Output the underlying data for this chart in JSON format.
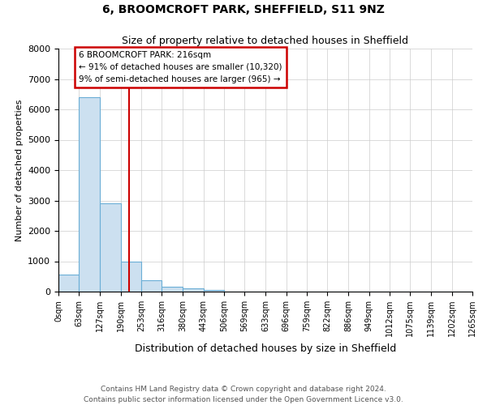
{
  "title_line1": "6, BROOMCROFT PARK, SHEFFIELD, S11 9NZ",
  "title_line2": "Size of property relative to detached houses in Sheffield",
  "xlabel": "Distribution of detached houses by size in Sheffield",
  "ylabel": "Number of detached properties",
  "bar_values": [
    560,
    6400,
    2900,
    1000,
    380,
    160,
    100,
    50,
    0,
    0,
    0,
    0,
    0,
    0,
    0,
    0,
    0,
    0,
    0,
    0
  ],
  "bin_edges": [
    0,
    63,
    127,
    190,
    253,
    316,
    380,
    443,
    506,
    569,
    633,
    696,
    759,
    822,
    886,
    949,
    1012,
    1075,
    1139,
    1202,
    1265
  ],
  "x_labels": [
    "0sqm",
    "63sqm",
    "127sqm",
    "190sqm",
    "253sqm",
    "316sqm",
    "380sqm",
    "443sqm",
    "506sqm",
    "569sqm",
    "633sqm",
    "696sqm",
    "759sqm",
    "822sqm",
    "886sqm",
    "949sqm",
    "1012sqm",
    "1075sqm",
    "1139sqm",
    "1202sqm",
    "1265sqm"
  ],
  "bar_color": "#cce0f0",
  "bar_edge_color": "#6baed6",
  "property_line_x": 216,
  "annotation_text_line1": "6 BROOMCROFT PARK: 216sqm",
  "annotation_text_line2": "← 91% of detached houses are smaller (10,320)",
  "annotation_text_line3": "9% of semi-detached houses are larger (965) →",
  "annotation_box_color": "#cc0000",
  "ylim": [
    0,
    8000
  ],
  "yticks": [
    0,
    1000,
    2000,
    3000,
    4000,
    5000,
    6000,
    7000,
    8000
  ],
  "footer_line1": "Contains HM Land Registry data © Crown copyright and database right 2024.",
  "footer_line2": "Contains public sector information licensed under the Open Government Licence v3.0.",
  "background_color": "#ffffff",
  "grid_color": "#cccccc"
}
